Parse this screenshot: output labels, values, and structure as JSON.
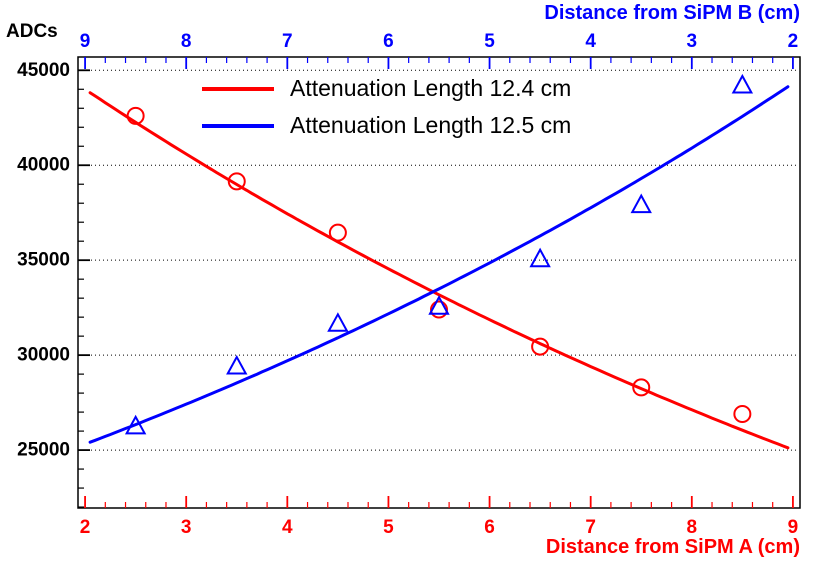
{
  "chart_data": {
    "type": "scatter",
    "title_y": "ADCs",
    "axes": {
      "x_bottom": {
        "title": "Distance from SiPM A (cm)",
        "color": "#ff0000",
        "min": 1.93,
        "max": 9.07,
        "major_ticks": [
          2,
          3,
          4,
          5,
          6,
          7,
          8,
          9
        ],
        "minor_step": 0.2
      },
      "x_top": {
        "title": "Distance from SiPM B (cm)",
        "color": "#0000ff",
        "tick_labels": [
          "9",
          "8",
          "7",
          "6",
          "5",
          "4",
          "3",
          "2"
        ],
        "relation": "xB = 11 - xA"
      },
      "y_left": {
        "title": "ADCs",
        "color": "#000000",
        "min": 21950,
        "max": 45700,
        "major_ticks": [
          25000,
          30000,
          35000,
          40000,
          45000
        ],
        "minor_step": 1000,
        "grid": "dotted-horizontal"
      }
    },
    "legend": {
      "items": [
        {
          "label": "Attenuation Length 12.4 cm",
          "color": "#ff0000"
        },
        {
          "label": "Attenuation Length 12.5 cm",
          "color": "#0000ff"
        }
      ]
    },
    "series": [
      {
        "name": "sipm-a",
        "marker": "open-circle",
        "color": "#ff0000",
        "x": [
          2.5,
          3.5,
          4.5,
          5.5,
          6.5,
          7.5,
          8.5
        ],
        "y": [
          42600,
          39150,
          36450,
          32400,
          30450,
          28300,
          26900
        ],
        "fit": {
          "model": "A*exp(-x/L)",
          "A": 51700,
          "L_cm": 12.4,
          "reversed": false,
          "x_range": [
            2.05,
            8.95
          ]
        }
      },
      {
        "name": "sipm-b",
        "marker": "open-triangle",
        "color": "#0000ff",
        "x": [
          2.5,
          3.5,
          4.5,
          5.5,
          6.5,
          7.5,
          8.5
        ],
        "y": [
          26250,
          29400,
          31650,
          32550,
          35050,
          37900,
          44200
        ],
        "fit": {
          "model": "A*exp(-(11-x)/L)",
          "A": 52000,
          "L_cm": 12.5,
          "reversed": true,
          "x_range": [
            2.05,
            8.95
          ]
        }
      }
    ]
  }
}
